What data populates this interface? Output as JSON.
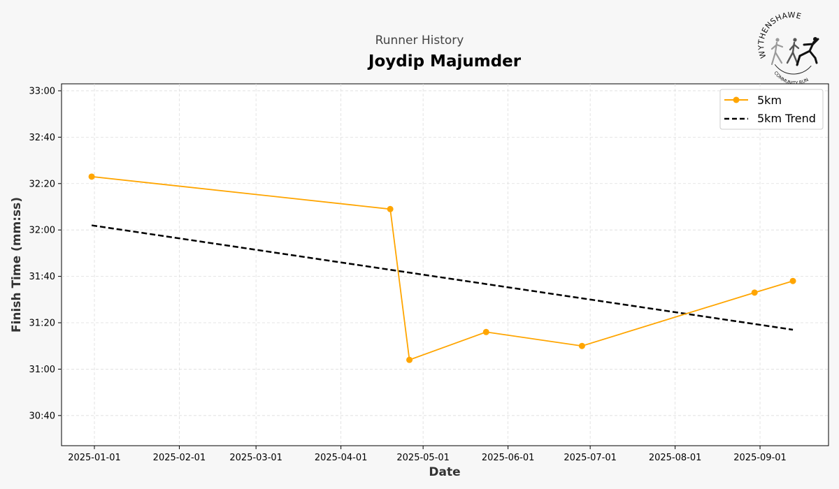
{
  "header": {
    "subtitle": "Runner History",
    "title": "Joydip Majumder"
  },
  "logo": {
    "top_text": "WYTHENSHAWE",
    "bottom_text": "COMMUNITY RUN"
  },
  "colors": {
    "background": "#f7f7f7",
    "plot_background": "#ffffff",
    "series": "#FFA500",
    "trend": "#000000",
    "grid": "#dddddd"
  },
  "chart_data": {
    "type": "line",
    "title": "Joydip Majumder",
    "subtitle": "Runner History",
    "xlabel": "Date",
    "ylabel": "Finish Time (mm:ss)",
    "x_type": "date",
    "xlim": [
      "2024-12-20",
      "2025-09-26"
    ],
    "ylim": [
      "30:27",
      "33:03"
    ],
    "x_ticks": [
      "2025-01-01",
      "2025-02-01",
      "2025-03-01",
      "2025-04-01",
      "2025-05-01",
      "2025-06-01",
      "2025-07-01",
      "2025-08-01",
      "2025-09-01"
    ],
    "y_ticks": [
      "30:40",
      "31:00",
      "31:20",
      "31:40",
      "32:00",
      "32:20",
      "32:40",
      "33:00"
    ],
    "grid": true,
    "legend_position": "top-right",
    "series": [
      {
        "name": "5km",
        "style": "solid line with circle markers",
        "x": [
          "2024-12-31",
          "2025-04-19",
          "2025-04-26",
          "2025-05-24",
          "2025-06-28",
          "2025-08-30",
          "2025-09-13"
        ],
        "y": [
          "32:23",
          "32:09",
          "31:04",
          "31:16",
          "31:10",
          "31:33",
          "31:38"
        ]
      },
      {
        "name": "5km Trend",
        "style": "dashed line",
        "x": [
          "2024-12-31",
          "2025-09-13"
        ],
        "y": [
          "32:02",
          "31:17"
        ]
      }
    ]
  }
}
